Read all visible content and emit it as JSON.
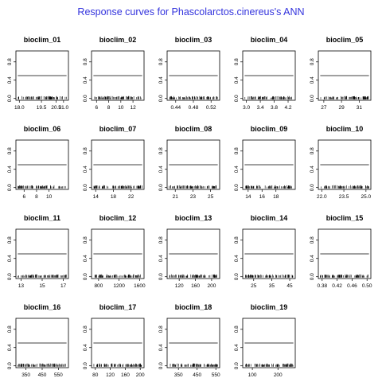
{
  "title": "Response curves for Phascolarctos.cinereus's ANN",
  "colors": {
    "title": "#3333dd",
    "line": "#000000",
    "axis": "#000000"
  },
  "chart_data": [
    {
      "type": "line",
      "title": "bioclim_01",
      "xlim": [
        17.9,
        21.2
      ],
      "xticks": [
        "18.0",
        "19.5",
        "20.5",
        "21.0"
      ],
      "xtick_values": [
        18.0,
        19.5,
        20.5,
        21.0
      ],
      "ylim": [
        0,
        1
      ],
      "yticks": [
        "0.0",
        "0.4",
        "0.8"
      ],
      "series": [
        {
          "x": [
            17.9,
            21.2
          ],
          "y": [
            0.5,
            0.5
          ]
        }
      ],
      "rug": {
        "from": 17.9,
        "to": 21.2
      }
    },
    {
      "type": "line",
      "title": "bioclim_02",
      "xlim": [
        5.5,
        13.5
      ],
      "xticks": [
        "6",
        "8",
        "10",
        "12"
      ],
      "xtick_values": [
        6,
        8,
        10,
        12
      ],
      "ylim": [
        0,
        1
      ],
      "yticks": [
        "0.0",
        "0.4",
        "0.8"
      ],
      "series": [
        {
          "x": [
            5.5,
            13.5
          ],
          "y": [
            0.5,
            0.5
          ]
        }
      ],
      "rug": {
        "from": 5.5,
        "to": 13.5
      }
    },
    {
      "type": "line",
      "title": "bioclim_03",
      "xlim": [
        0.425,
        0.535
      ],
      "xticks": [
        "0.44",
        "0.48",
        "0.52"
      ],
      "xtick_values": [
        0.44,
        0.48,
        0.52
      ],
      "ylim": [
        0,
        1
      ],
      "yticks": [
        "0.0",
        "0.4",
        "0.8"
      ],
      "series": [
        {
          "x": [
            0.425,
            0.535
          ],
          "y": [
            0.5,
            0.5
          ]
        }
      ],
      "rug": {
        "from": 0.425,
        "to": 0.535
      }
    },
    {
      "type": "line",
      "title": "bioclim_04",
      "xlim": [
        2.95,
        4.35
      ],
      "xticks": [
        "3.0",
        "3.4",
        "3.8",
        "4.2"
      ],
      "xtick_values": [
        3.0,
        3.4,
        3.8,
        4.2
      ],
      "ylim": [
        0,
        1
      ],
      "yticks": [
        "0.0",
        "0.4",
        "0.8"
      ],
      "series": [
        {
          "x": [
            2.95,
            4.35
          ],
          "y": [
            0.5,
            0.5
          ]
        }
      ],
      "rug": {
        "from": 2.95,
        "to": 4.35
      }
    },
    {
      "type": "line",
      "title": "bioclim_05",
      "xlim": [
        26.6,
        32.1
      ],
      "xticks": [
        "27",
        "29",
        "31"
      ],
      "xtick_values": [
        27,
        29,
        31
      ],
      "ylim": [
        0,
        1
      ],
      "yticks": [
        "0.0",
        "0.4",
        "0.8"
      ],
      "series": [
        {
          "x": [
            26.6,
            32.1
          ],
          "y": [
            0.5,
            0.5
          ]
        }
      ],
      "rug": {
        "from": 26.6,
        "to": 32.1
      }
    },
    {
      "type": "line",
      "title": "bioclim_06",
      "xlim": [
        5.0,
        12.8
      ],
      "xticks": [
        "6",
        "8",
        "10"
      ],
      "xtick_values": [
        6,
        8,
        10
      ],
      "ylim": [
        0,
        1
      ],
      "yticks": [
        "0.0",
        "0.4",
        "0.8"
      ],
      "series": [
        {
          "x": [
            5.0,
            12.8
          ],
          "y": [
            0.5,
            0.5
          ]
        }
      ],
      "rug": {
        "from": 5.0,
        "to": 12.8
      }
    },
    {
      "type": "line",
      "title": "bioclim_07",
      "xlim": [
        13.5,
        24.5
      ],
      "xticks": [
        "14",
        "18",
        "22"
      ],
      "xtick_values": [
        14,
        18,
        22
      ],
      "ylim": [
        0,
        1
      ],
      "yticks": [
        "0.0",
        "0.4",
        "0.8"
      ],
      "series": [
        {
          "x": [
            13.5,
            24.5
          ],
          "y": [
            0.5,
            0.5
          ]
        }
      ],
      "rug": {
        "from": 13.5,
        "to": 24.5
      }
    },
    {
      "type": "line",
      "title": "bioclim_08",
      "xlim": [
        20.3,
        25.8
      ],
      "xticks": [
        "21",
        "23",
        "25"
      ],
      "xtick_values": [
        21,
        23,
        25
      ],
      "ylim": [
        0,
        1
      ],
      "yticks": [
        "0.0",
        "0.4",
        "0.8"
      ],
      "series": [
        {
          "x": [
            20.3,
            25.8
          ],
          "y": [
            0.5,
            0.5
          ]
        }
      ],
      "rug": {
        "from": 20.3,
        "to": 25.8
      }
    },
    {
      "type": "line",
      "title": "bioclim_09",
      "xlim": [
        13.5,
        20.5
      ],
      "xticks": [
        "14",
        "16",
        "18"
      ],
      "xtick_values": [
        14,
        16,
        18
      ],
      "ylim": [
        0,
        1
      ],
      "yticks": [
        "0.0",
        "0.4",
        "0.8"
      ],
      "series": [
        {
          "x": [
            13.5,
            20.5
          ],
          "y": [
            0.5,
            0.5
          ]
        }
      ],
      "rug": {
        "from": 13.5,
        "to": 20.5
      }
    },
    {
      "type": "line",
      "title": "bioclim_10",
      "xlim": [
        21.9,
        25.2
      ],
      "xticks": [
        "22.0",
        "23.5",
        "25.0"
      ],
      "xtick_values": [
        22.0,
        23.5,
        25.0
      ],
      "ylim": [
        0,
        1
      ],
      "yticks": [
        "0.0",
        "0.4",
        "0.8"
      ],
      "series": [
        {
          "x": [
            21.9,
            25.2
          ],
          "y": [
            0.5,
            0.5
          ]
        }
      ],
      "rug": {
        "from": 21.9,
        "to": 25.2
      }
    },
    {
      "type": "line",
      "title": "bioclim_11",
      "xlim": [
        12.7,
        17.3
      ],
      "xticks": [
        "13",
        "15",
        "17"
      ],
      "xtick_values": [
        13,
        15,
        17
      ],
      "ylim": [
        0,
        1
      ],
      "yticks": [
        "0.0",
        "0.4",
        "0.8"
      ],
      "series": [
        {
          "x": [
            12.7,
            17.3
          ],
          "y": [
            0.5,
            0.5
          ]
        }
      ],
      "rug": {
        "from": 12.7,
        "to": 17.3
      }
    },
    {
      "type": "line",
      "title": "bioclim_12",
      "xlim": [
        700,
        1650
      ],
      "xticks": [
        "800",
        "1200",
        "1600"
      ],
      "xtick_values": [
        800,
        1200,
        1600
      ],
      "ylim": [
        0,
        1
      ],
      "yticks": [
        "0.0",
        "0.4",
        "0.8"
      ],
      "series": [
        {
          "x": [
            700,
            1650
          ],
          "y": [
            0.5,
            0.5
          ]
        }
      ],
      "rug": {
        "from": 700,
        "to": 1650
      }
    },
    {
      "type": "line",
      "title": "bioclim_13",
      "xlim": [
        95,
        215
      ],
      "xticks": [
        "120",
        "160",
        "200"
      ],
      "xtick_values": [
        120,
        160,
        200
      ],
      "ylim": [
        0,
        1
      ],
      "yticks": [
        "0.0",
        "0.4",
        "0.8"
      ],
      "series": [
        {
          "x": [
            95,
            215
          ],
          "y": [
            0.5,
            0.5
          ]
        }
      ],
      "rug": {
        "from": 95,
        "to": 215
      }
    },
    {
      "type": "line",
      "title": "bioclim_14",
      "xlim": [
        20,
        47
      ],
      "xticks": [
        "25",
        "35",
        "45"
      ],
      "xtick_values": [
        25,
        35,
        45
      ],
      "ylim": [
        0,
        1
      ],
      "yticks": [
        "0.0",
        "0.4",
        "0.8"
      ],
      "series": [
        {
          "x": [
            20,
            47
          ],
          "y": [
            0.5,
            0.5
          ]
        }
      ],
      "rug": {
        "from": 20,
        "to": 47
      }
    },
    {
      "type": "line",
      "title": "bioclim_15",
      "xlim": [
        0.375,
        0.505
      ],
      "xticks": [
        "0.38",
        "0.42",
        "0.46",
        "0.50"
      ],
      "xtick_values": [
        0.38,
        0.42,
        0.46,
        0.5
      ],
      "ylim": [
        0,
        1
      ],
      "yticks": [
        "0.0",
        "0.4",
        "0.8"
      ],
      "series": [
        {
          "x": [
            0.375,
            0.505
          ],
          "y": [
            0.5,
            0.5
          ]
        }
      ],
      "rug": {
        "from": 0.375,
        "to": 0.505
      }
    },
    {
      "type": "line",
      "title": "bioclim_16",
      "xlim": [
        300,
        600
      ],
      "xticks": [
        "350",
        "450",
        "550"
      ],
      "xtick_values": [
        350,
        450,
        550
      ],
      "ylim": [
        0,
        1
      ],
      "yticks": [
        "0.0",
        "0.4",
        "0.8"
      ],
      "series": [
        {
          "x": [
            300,
            600
          ],
          "y": [
            0.5,
            0.5
          ]
        }
      ],
      "rug": {
        "from": 300,
        "to": 600
      }
    },
    {
      "type": "line",
      "title": "bioclim_17",
      "xlim": [
        75,
        205
      ],
      "xticks": [
        "80",
        "120",
        "160",
        "200"
      ],
      "xtick_values": [
        80,
        120,
        160,
        200
      ],
      "ylim": [
        0,
        1
      ],
      "yticks": [
        "0.0",
        "0.4",
        "0.8"
      ],
      "series": [
        {
          "x": [
            75,
            205
          ],
          "y": [
            0.5,
            0.5
          ]
        }
      ],
      "rug": {
        "from": 75,
        "to": 205
      }
    },
    {
      "type": "line",
      "title": "bioclim_18",
      "xlim": [
        300,
        560
      ],
      "xticks": [
        "350",
        "450",
        "550"
      ],
      "xtick_values": [
        350,
        450,
        550
      ],
      "ylim": [
        0,
        1
      ],
      "yticks": [
        "0.0",
        "0.4",
        "0.8"
      ],
      "series": [
        {
          "x": [
            300,
            560
          ],
          "y": [
            0.5,
            0.5
          ]
        }
      ],
      "rug": {
        "from": 300,
        "to": 560
      }
    },
    {
      "type": "line",
      "title": "bioclim_19",
      "xlim": [
        70,
        260
      ],
      "xticks": [
        "100",
        "200"
      ],
      "xtick_values": [
        100,
        200
      ],
      "ylim": [
        0,
        1
      ],
      "yticks": [
        "0.0",
        "0.4",
        "0.8"
      ],
      "series": [
        {
          "x": [
            70,
            260
          ],
          "y": [
            0.5,
            0.5
          ]
        }
      ],
      "rug": {
        "from": 70,
        "to": 260
      }
    }
  ]
}
